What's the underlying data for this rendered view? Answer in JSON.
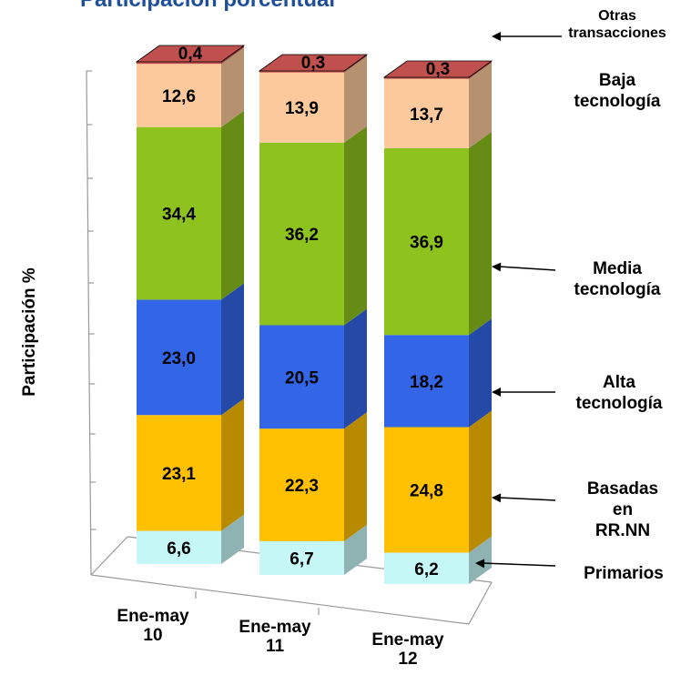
{
  "chart_data": {
    "type": "bar",
    "stacked": true,
    "style": "3d",
    "title": "Participación porcentual",
    "ylabel": "Participación %",
    "categories": [
      "Ene-may 10",
      "Ene-may 11",
      "Ene-may 12"
    ],
    "category_lines": [
      [
        "Ene-may",
        "10"
      ],
      [
        "Ene-may",
        "11"
      ],
      [
        "Ene-may",
        "12"
      ]
    ],
    "series": [
      {
        "name": "Primarios",
        "values": [
          6.6,
          6.7,
          6.2
        ],
        "labels": [
          "6,6",
          "6,7",
          "6,2"
        ],
        "color": "#C6F7F7"
      },
      {
        "name": "Basadas en RR.NN",
        "values": [
          23.1,
          22.3,
          24.8
        ],
        "labels": [
          "23,1",
          "22,3",
          "24,8"
        ],
        "color": "#FFC000"
      },
      {
        "name": "Alta tecnología",
        "values": [
          23.0,
          20.5,
          18.2
        ],
        "labels": [
          "23,0",
          "20,5",
          "18,2"
        ],
        "color": "#3366E6"
      },
      {
        "name": "Media tecnología",
        "values": [
          34.4,
          36.2,
          36.9
        ],
        "labels": [
          "34,4",
          "36,2",
          "36,9"
        ],
        "color": "#8DC21F"
      },
      {
        "name": "Baja tecnología",
        "values": [
          12.6,
          13.9,
          13.7
        ],
        "labels": [
          "12,6",
          "13,9",
          "13,7"
        ],
        "color": "#FBC99B"
      },
      {
        "name": "Otras transacciones",
        "values": [
          0.4,
          0.3,
          0.3
        ],
        "labels": [
          "0,4",
          "0,3",
          "0,3"
        ],
        "color": "#C0504D"
      }
    ],
    "legend_labels": [
      {
        "series": "Otras transacciones",
        "lines": [
          "Otras",
          "transacciones"
        ]
      },
      {
        "series": "Baja tecnología",
        "lines": [
          "Baja",
          "tecnología"
        ]
      },
      {
        "series": "Media tecnología",
        "lines": [
          "Media",
          "tecnología"
        ]
      },
      {
        "series": "Alta tecnología",
        "lines": [
          "Alta",
          "tecnología"
        ]
      },
      {
        "series": "Basadas en RR.NN",
        "lines": [
          "Basadas en",
          "RR.NN"
        ]
      },
      {
        "series": "Primarios",
        "lines": [
          "Primarios"
        ]
      }
    ],
    "legend": "right",
    "grid": false
  }
}
